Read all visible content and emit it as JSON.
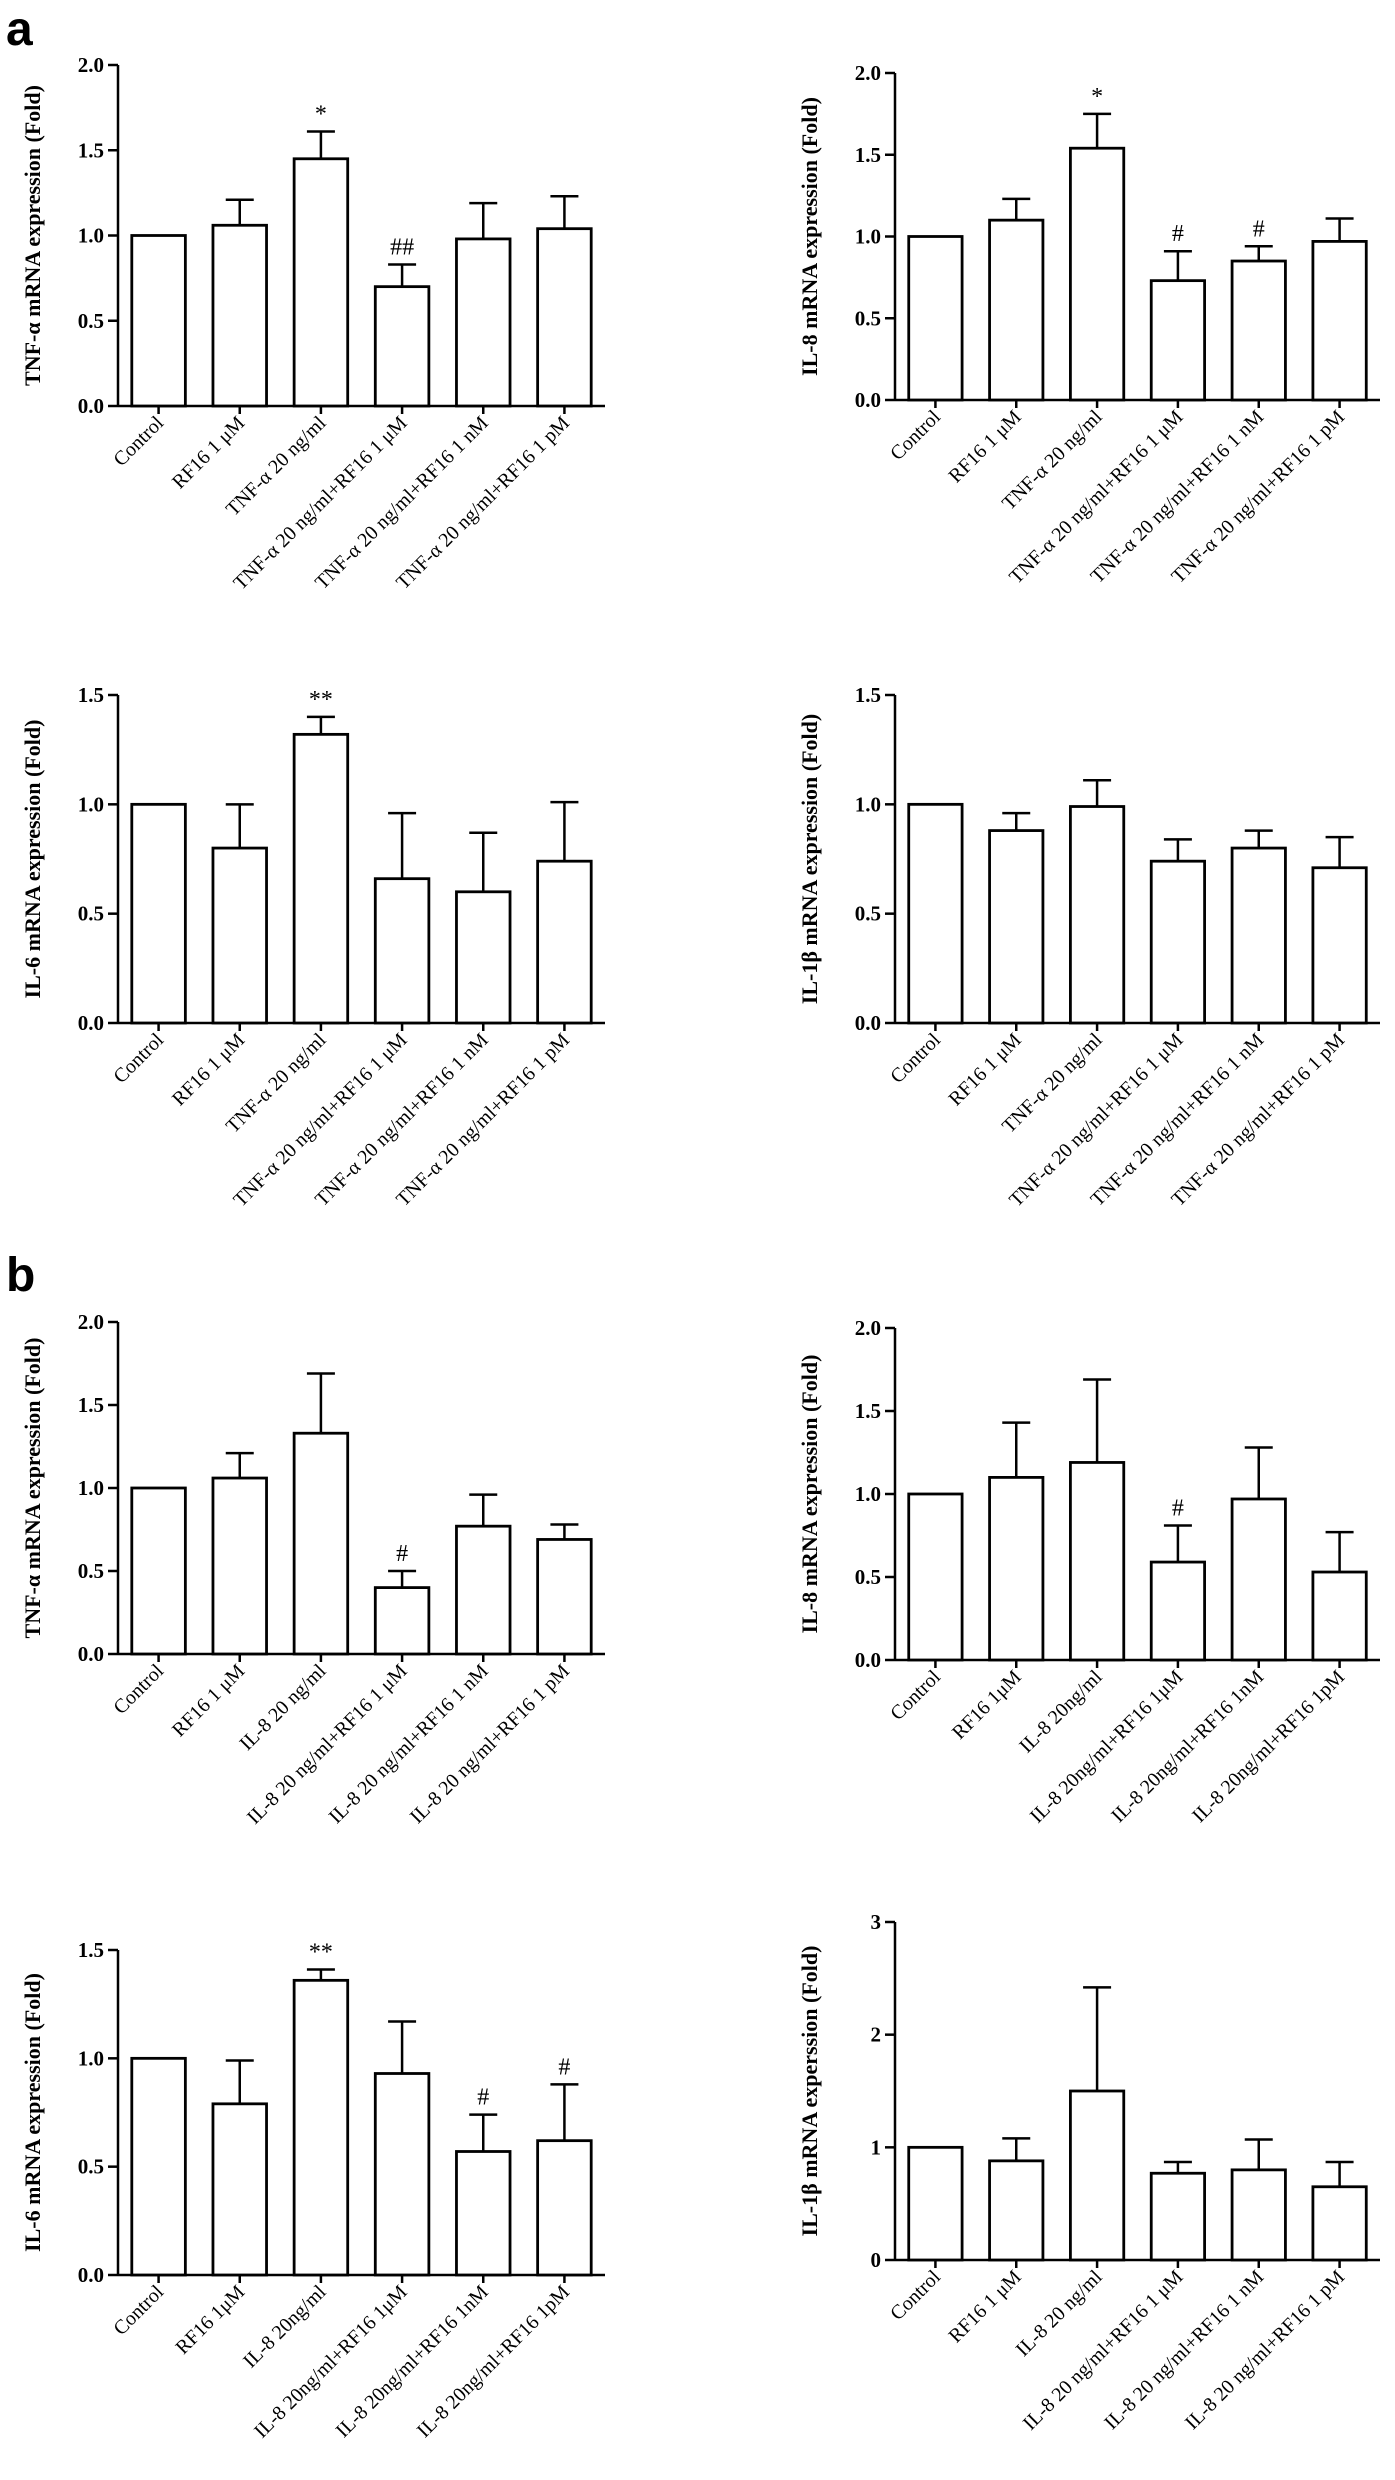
{
  "panels": [
    {
      "letter": "a"
    },
    {
      "letter": "b"
    }
  ],
  "chart_data": [
    {
      "type": "bar",
      "panel": "a",
      "ylabel": "TNF-α mRNA expression (Fold)",
      "ylim": [
        0,
        2.0
      ],
      "yticks": [
        "0.0",
        "0.5",
        "1.0",
        "1.5",
        "2.0"
      ],
      "categories": [
        "Control",
        "RF16 1 μM",
        "TNF-α 20 ng/ml",
        "TNF-α 20 ng/ml+RF16 1 μM",
        "TNF-α 20 ng/ml+RF16 1 nM",
        "TNF-α 20 ng/ml+RF16 1 pM"
      ],
      "values": [
        1.0,
        1.06,
        1.45,
        0.7,
        0.98,
        1.04
      ],
      "errors": [
        0,
        0.15,
        0.16,
        0.13,
        0.21,
        0.19
      ],
      "annotations": [
        "",
        "",
        "*",
        "##",
        "",
        ""
      ]
    },
    {
      "type": "bar",
      "panel": "a",
      "ylabel": "IL-8 mRNA expression (Fold)",
      "ylim": [
        0,
        2.0
      ],
      "yticks": [
        "0.0",
        "0.5",
        "1.0",
        "1.5",
        "2.0"
      ],
      "categories": [
        "Control",
        "RF16 1 μM",
        "TNF-α 20 ng/ml",
        "TNF-α 20 ng/ml+RF16 1 μM",
        "TNF-α 20 ng/ml+RF16 1 nM",
        "TNF-α 20 ng/ml+RF16 1 pM"
      ],
      "values": [
        1.0,
        1.1,
        1.54,
        0.73,
        0.85,
        0.97
      ],
      "errors": [
        0,
        0.13,
        0.21,
        0.18,
        0.09,
        0.14
      ],
      "annotations": [
        "",
        "",
        "*",
        "#",
        "#",
        ""
      ]
    },
    {
      "type": "bar",
      "panel": "a",
      "ylabel": "IL-6 mRNA expression (Fold)",
      "ylim": [
        0,
        1.5
      ],
      "yticks": [
        "0.0",
        "0.5",
        "1.0",
        "1.5"
      ],
      "categories": [
        "Control",
        "RF16 1 μM",
        "TNF-α 20 ng/ml",
        "TNF-α 20 ng/ml+RF16 1 μM",
        "TNF-α 20 ng/ml+RF16 1 nM",
        "TNF-α 20 ng/ml+RF16 1 pM"
      ],
      "values": [
        1.0,
        0.8,
        1.32,
        0.66,
        0.6,
        0.74
      ],
      "errors": [
        0,
        0.2,
        0.08,
        0.3,
        0.27,
        0.27
      ],
      "annotations": [
        "",
        "",
        "**",
        "",
        "",
        ""
      ]
    },
    {
      "type": "bar",
      "panel": "a",
      "ylabel": "IL-1β mRNA expression (Fold)",
      "ylim": [
        0,
        1.5
      ],
      "yticks": [
        "0.0",
        "0.5",
        "1.0",
        "1.5"
      ],
      "categories": [
        "Control",
        "RF16 1 μM",
        "TNF-α 20 ng/ml",
        "TNF-α 20 ng/ml+RF16 1 μM",
        "TNF-α 20 ng/ml+RF16 1 nM",
        "TNF-α 20 ng/ml+RF16 1 pM"
      ],
      "values": [
        1.0,
        0.88,
        0.99,
        0.74,
        0.8,
        0.71
      ],
      "errors": [
        0,
        0.08,
        0.12,
        0.1,
        0.08,
        0.14
      ],
      "annotations": [
        "",
        "",
        "",
        "",
        "",
        ""
      ]
    },
    {
      "type": "bar",
      "panel": "b",
      "ylabel": "TNF-α mRNA expression (Fold)",
      "ylim": [
        0,
        2.0
      ],
      "yticks": [
        "0.0",
        "0.5",
        "1.0",
        "1.5",
        "2.0"
      ],
      "categories": [
        "Control",
        "RF16 1 μM",
        "IL-8 20 ng/ml",
        "IL-8 20 ng/ml+RF16 1 μM",
        "IL-8 20 ng/ml+RF16 1 nM",
        "IL-8 20 ng/ml+RF16 1 pM"
      ],
      "values": [
        1.0,
        1.06,
        1.33,
        0.4,
        0.77,
        0.69
      ],
      "errors": [
        0,
        0.15,
        0.36,
        0.1,
        0.19,
        0.09
      ],
      "annotations": [
        "",
        "",
        "",
        "#",
        "",
        ""
      ]
    },
    {
      "type": "bar",
      "panel": "b",
      "ylabel": "IL-8 mRNA expression (Fold)",
      "ylim": [
        0,
        2.0
      ],
      "yticks": [
        "0.0",
        "0.5",
        "1.0",
        "1.5",
        "2.0"
      ],
      "categories": [
        "Control",
        "RF16 1μM",
        "IL-8 20ng/ml",
        "IL-8 20ng/ml+RF16 1μM",
        "IL-8 20ng/ml+RF16 1nM",
        "IL-8 20ng/ml+RF16 1pM"
      ],
      "values": [
        1.0,
        1.1,
        1.19,
        0.59,
        0.97,
        0.53
      ],
      "errors": [
        0,
        0.33,
        0.5,
        0.22,
        0.31,
        0.24
      ],
      "annotations": [
        "",
        "",
        "",
        "#",
        "",
        ""
      ]
    },
    {
      "type": "bar",
      "panel": "b",
      "ylabel": "IL-6 mRNA expression (Fold)",
      "ylim": [
        0,
        1.5
      ],
      "yticks": [
        "0.0",
        "0.5",
        "1.0",
        "1.5"
      ],
      "categories": [
        "Control",
        "RF16 1μM",
        "IL-8 20ng/ml",
        "IL-8 20ng/ml+RF16 1μM",
        "IL-8 20ng/ml+RF16 1nM",
        "IL-8 20ng/ml+RF16 1pM"
      ],
      "values": [
        1.0,
        0.79,
        1.36,
        0.93,
        0.57,
        0.62
      ],
      "errors": [
        0,
        0.2,
        0.05,
        0.24,
        0.17,
        0.26
      ],
      "annotations": [
        "",
        "",
        "**",
        "",
        "#",
        "#"
      ]
    },
    {
      "type": "bar",
      "panel": "b",
      "ylabel": "IL-1β mRNA experssion (Fold)",
      "ylim": [
        0,
        3
      ],
      "yticks": [
        "0",
        "1",
        "2",
        "3"
      ],
      "categories": [
        "Control",
        "RF16 1 μM",
        "IL-8 20 ng/ml",
        "IL-8 20 ng/ml+RF16 1 μM",
        "IL-8 20 ng/ml+RF16 1 nM",
        "IL-8 20 ng/ml+RF16 1 pM"
      ],
      "values": [
        1.0,
        0.88,
        1.5,
        0.77,
        0.8,
        0.65
      ],
      "errors": [
        0,
        0.2,
        0.92,
        0.1,
        0.27,
        0.22
      ],
      "annotations": [
        "",
        "",
        "",
        "",
        "",
        ""
      ]
    }
  ]
}
